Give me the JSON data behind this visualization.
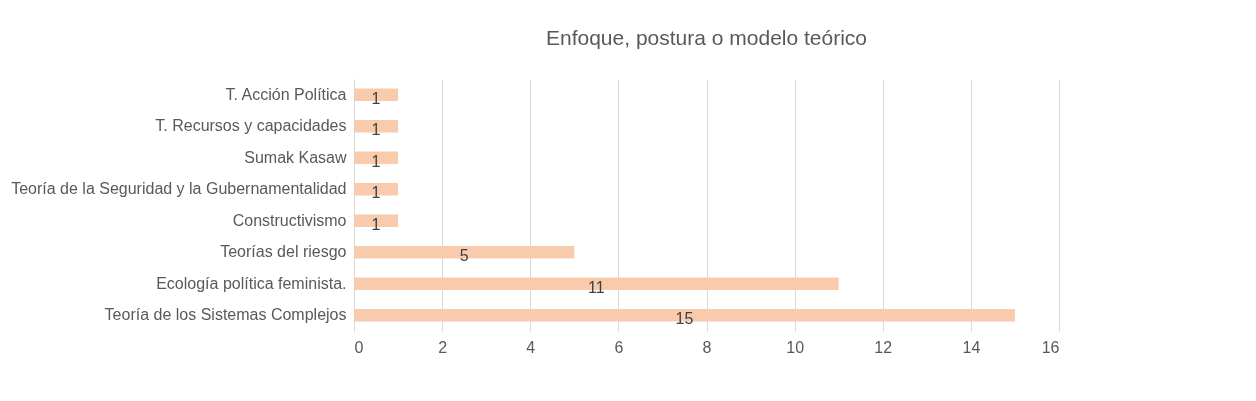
{
  "chart_data": {
    "type": "bar",
    "orientation": "horizontal",
    "title": "Enfoque, postura o modelo teórico",
    "categories": [
      "T. Acción Política",
      "T. Recursos y capacidades",
      "Sumak Kasaw",
      "Teoría de la Seguridad y la Gubernamentalidad",
      "Constructivismo",
      "Teorías del riesgo",
      "Ecología política feminista.",
      "Teoría de los Sistemas Complejos"
    ],
    "values": [
      1,
      1,
      1,
      1,
      1,
      5,
      11,
      15
    ],
    "color": "#f8cbad",
    "xlim": [
      0,
      16
    ],
    "xticks": [
      0,
      2,
      4,
      6,
      8,
      10,
      12,
      14,
      16
    ],
    "grid": "x",
    "data_labels": true
  }
}
